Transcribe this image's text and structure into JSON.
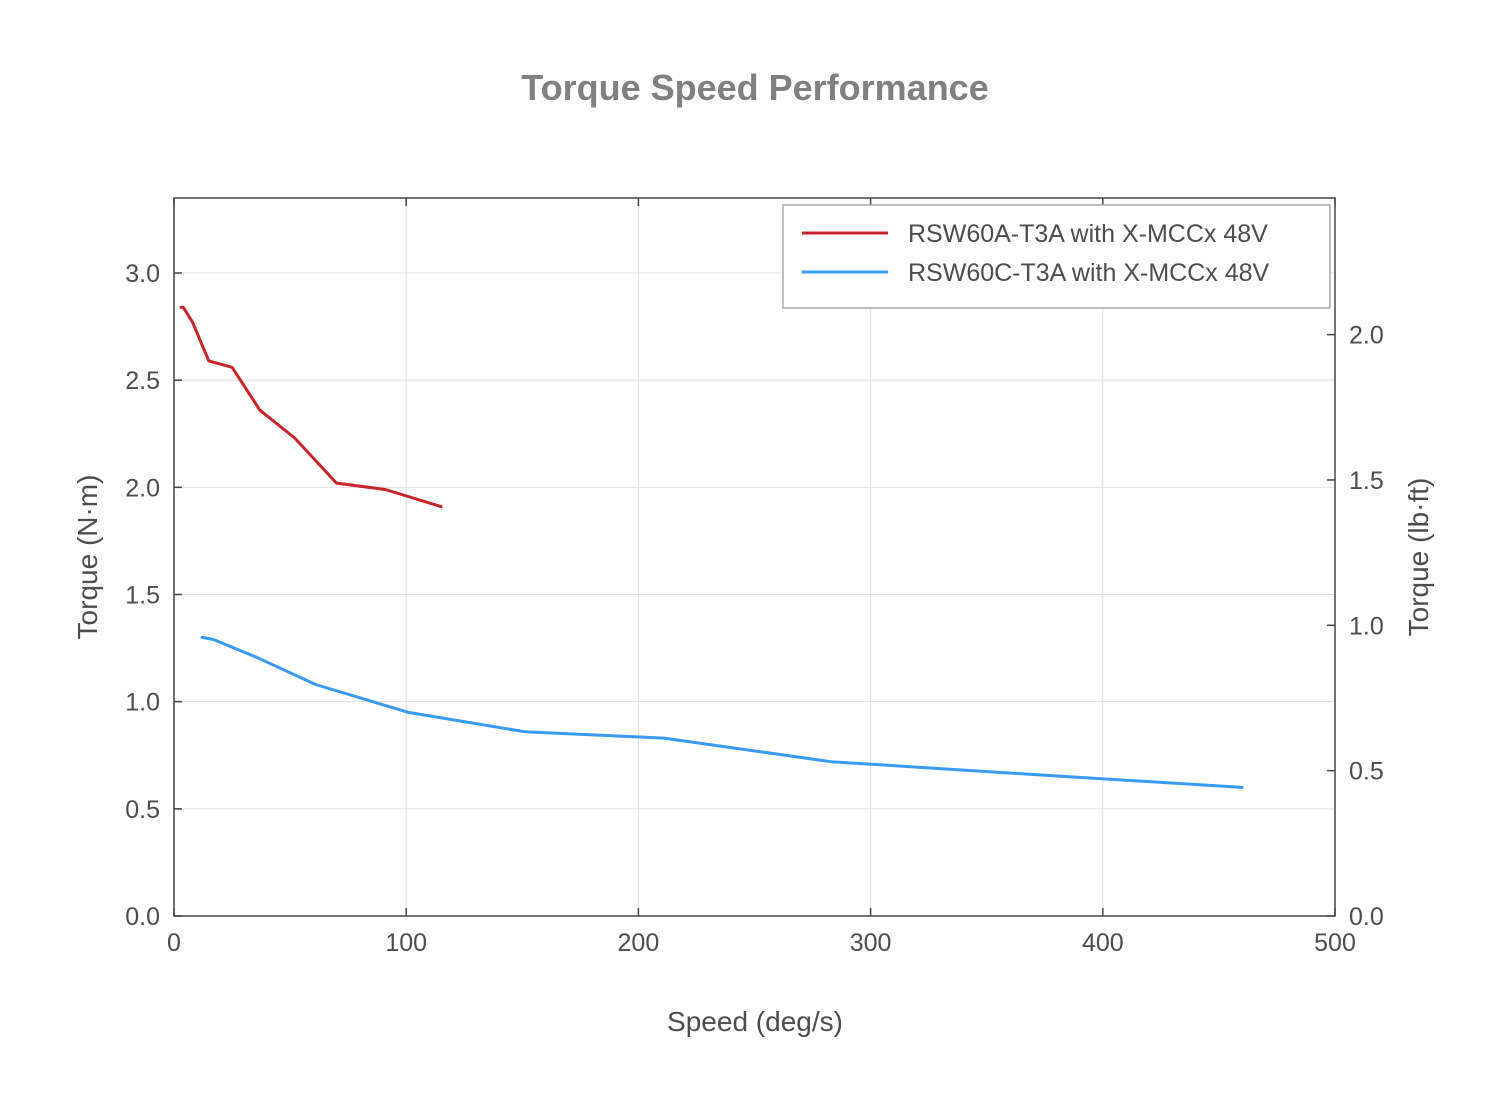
{
  "chart_data": {
    "type": "line",
    "title": "Torque Speed Performance",
    "xlabel": "Speed (deg/s)",
    "ylabel": "Torque (N·m)",
    "y2label": "Torque (lb·ft)",
    "xlim": [
      0,
      500
    ],
    "ylim": [
      0,
      3.35
    ],
    "y2lim": [
      0,
      2.47
    ],
    "xticks": [
      "0",
      "100",
      "200",
      "300",
      "400",
      "500"
    ],
    "yticks": [
      "0.0",
      "0.5",
      "1.0",
      "1.5",
      "2.0",
      "2.5",
      "3.0"
    ],
    "y2ticks": [
      "0.0",
      "0.5",
      "1.0",
      "1.5",
      "2.0"
    ],
    "grid": true,
    "legend_position": "top-right",
    "series": [
      {
        "name": "RSW60A-T3A with X-MCCx 48V",
        "color": "#c8252b",
        "x": [
          3,
          4,
          8,
          15,
          25,
          37,
          52,
          70,
          91,
          115
        ],
        "y": [
          2.84,
          2.84,
          2.77,
          2.59,
          2.56,
          2.36,
          2.23,
          2.02,
          1.99,
          1.91
        ]
      },
      {
        "name": "RSW60C-T3A with X-MCCx 48V",
        "color": "#3a9af0",
        "x": [
          12,
          17,
          35,
          61,
          101,
          151,
          211,
          283,
          370,
          460
        ],
        "y": [
          1.3,
          1.29,
          1.21,
          1.08,
          0.95,
          0.86,
          0.83,
          0.72,
          0.66,
          0.6
        ]
      }
    ]
  }
}
